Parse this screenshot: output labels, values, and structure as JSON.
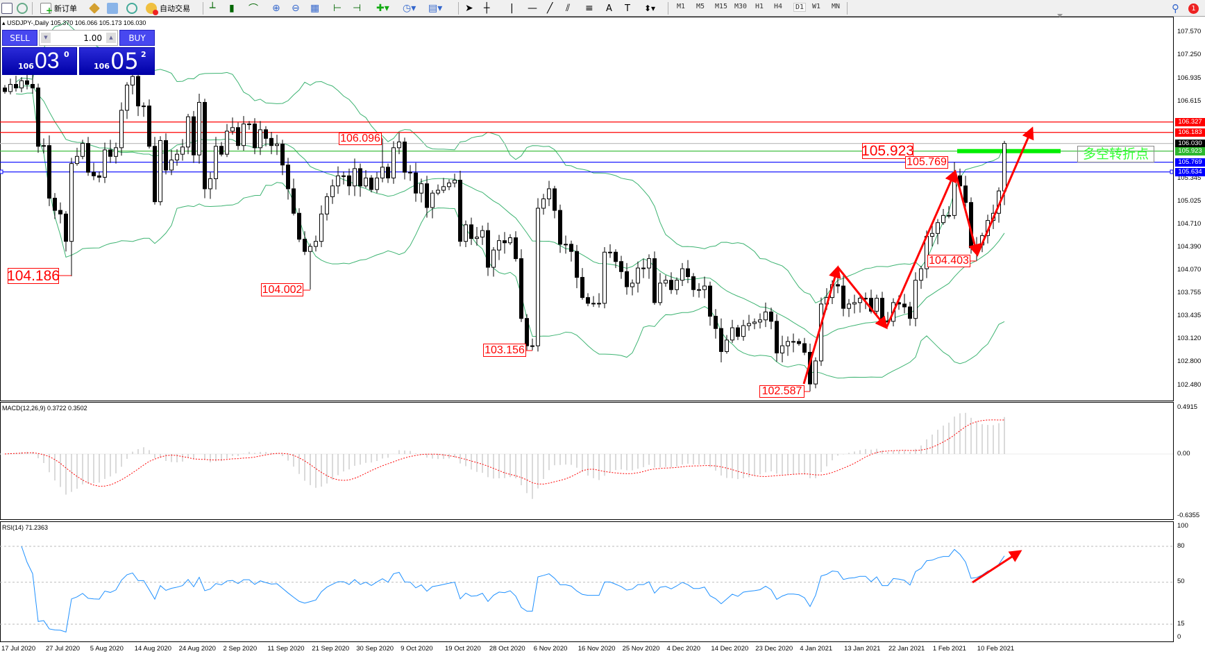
{
  "toolbar": {
    "new_order": "新订单",
    "auto_trading": "自动交易",
    "timeframes": [
      "M1",
      "M5",
      "M15",
      "M30",
      "H1",
      "H4",
      "D1",
      "W1",
      "MN"
    ],
    "active_timeframe": "D1",
    "notification_count": "1"
  },
  "chart_header": {
    "symbol": "USDJPY-,Daily",
    "values": "105.370 106.066 105.173 106.030"
  },
  "one_click": {
    "sell_label": "SELL",
    "buy_label": "BUY",
    "volume": "1.00",
    "sell_big": "03",
    "sell_small": "106",
    "sell_sup": "0",
    "buy_big": "05",
    "buy_small": "106",
    "buy_sup": "2"
  },
  "price_axis": {
    "ticks": [
      "107.570",
      "107.250",
      "106.935",
      "106.615",
      "105.345",
      "105.025",
      "104.710",
      "104.390",
      "104.070",
      "103.755",
      "103.435",
      "103.120",
      "102.800",
      "102.480"
    ]
  },
  "levels": [
    {
      "price": "106.327",
      "color": "#ff0000"
    },
    {
      "price": "106.183",
      "color": "#ff0000"
    },
    {
      "price": "106.030",
      "color": "#c0c0c0",
      "tag_color": "#000000"
    },
    {
      "price": "105.923",
      "color": "#2eb82e"
    },
    {
      "price": "105.769",
      "color": "#0000ff"
    },
    {
      "price": "105.634",
      "color": "#0000ff"
    }
  ],
  "annotations": {
    "low_1": "104.186",
    "low_2": "104.002",
    "high_1": "106.096",
    "low_3": "103.156",
    "low_4": "102.587",
    "level_mark": "105.923",
    "high_2": "105.769",
    "low_5": "104.403",
    "turning_point_text": "多空转折点"
  },
  "macd": {
    "title": "MACD(12,26,9) 0.3722 0.3502",
    "axis": [
      "0.4915",
      "0.00",
      "-0.6355"
    ]
  },
  "rsi": {
    "title": "RSI(14) 71.2363",
    "axis": [
      "100",
      "80",
      "50",
      "15",
      "0"
    ]
  },
  "dates": [
    "17 Jul 2020",
    "27 Jul 2020",
    "5 Aug 2020",
    "14 Aug 2020",
    "24 Aug 2020",
    "2 Sep 2020",
    "11 Sep 2020",
    "21 Sep 2020",
    "30 Sep 2020",
    "9 Oct 2020",
    "19 Oct 2020",
    "28 Oct 2020",
    "6 Nov 2020",
    "16 Nov 2020",
    "25 Nov 2020",
    "4 Dec 2020",
    "14 Dec 2020",
    "23 Dec 2020",
    "4 Jan 2021",
    "13 Jan 2021",
    "22 Jan 2021",
    "1 Feb 2021",
    "10 Feb 2021"
  ],
  "chart_data": {
    "type": "candlestick",
    "symbol": "USDJPY",
    "timeframe": "Daily",
    "ylim": [
      102.48,
      107.6
    ],
    "close": [
      106.75,
      106.85,
      106.8,
      106.9,
      106.85,
      106.8,
      105.99,
      106.0,
      105.27,
      105.1,
      105.05,
      104.67,
      105.75,
      105.85,
      106.03,
      105.63,
      105.58,
      105.56,
      105.94,
      105.85,
      105.97,
      106.49,
      106.84,
      106.96,
      106.55,
      106.55,
      105.99,
      105.22,
      106.07,
      105.66,
      105.8,
      105.88,
      105.98,
      106.4,
      105.87,
      106.6,
      105.4,
      105.54,
      105.99,
      105.88,
      106.2,
      106.25,
      106.0,
      106.3,
      106.3,
      105.97,
      106.22,
      106.1,
      106.0,
      106.02,
      105.73,
      105.4,
      105.06,
      104.7,
      104.53,
      104.6,
      104.67,
      105.05,
      105.29,
      105.44,
      105.58,
      105.58,
      105.44,
      105.68,
      105.44,
      105.55,
      105.39,
      105.55,
      105.7,
      105.55,
      105.97,
      106.05,
      105.63,
      105.62,
      105.34,
      105.47,
      105.14,
      105.34,
      105.38,
      105.43,
      105.48,
      105.52,
      104.67,
      104.9,
      104.71,
      104.73,
      104.82,
      104.31,
      104.55,
      104.68,
      104.65,
      104.72,
      104.43,
      103.6,
      103.22,
      103.22,
      105.13,
      105.26,
      105.4,
      105.1,
      104.63,
      104.63,
      104.53,
      104.17,
      103.89,
      103.81,
      103.81,
      103.81,
      104.52,
      104.52,
      104.39,
      104.25,
      104.04,
      104.09,
      104.3,
      104.3,
      104.43,
      103.82,
      104.09,
      104.13,
      104.0,
      104.13,
      104.29,
      104.18,
      104.0,
      104.0,
      104.05,
      103.63,
      103.46,
      103.14,
      103.3,
      103.47,
      103.35,
      103.5,
      103.53,
      103.55,
      103.58,
      103.69,
      103.56,
      103.12,
      103.22,
      103.28,
      103.28,
      103.25,
      103.13,
      102.69,
      103.01,
      103.8,
      103.89,
      104.07,
      104.05,
      103.74,
      103.8,
      103.82,
      103.88,
      103.88,
      103.7,
      103.88,
      103.56,
      103.56,
      103.82,
      103.8,
      103.76,
      103.6,
      104.13,
      104.29,
      104.74,
      104.78,
      104.93,
      105.03,
      105.03,
      105.58,
      105.44,
      105.21,
      104.58,
      104.62,
      104.75,
      104.96,
      105.06,
      105.37,
      106.03
    ],
    "last_bar": {
      "open": 105.37,
      "high": 106.066,
      "low": 105.173,
      "close": 106.03
    },
    "marked_extremes": [
      {
        "bar": 12,
        "low": 104.186
      },
      {
        "bar": 55,
        "low": 104.002
      },
      {
        "bar": 68,
        "high": 106.096
      },
      {
        "bar": 95,
        "low": 103.156
      },
      {
        "bar": 145,
        "low": 102.587
      },
      {
        "bar": 171,
        "high": 105.769
      },
      {
        "bar": 175,
        "low": 104.403
      }
    ],
    "indicators": [
      "Bollinger Bands",
      "MACD(12,26,9)",
      "RSI(14)"
    ],
    "colors": {
      "bands": "#3cb371",
      "macd_signal": "#ff0000",
      "macd_hist": "#b4b4b4",
      "rsi": "#1e90ff",
      "arrows": "#ff0000",
      "zone": "#00ee00"
    }
  }
}
